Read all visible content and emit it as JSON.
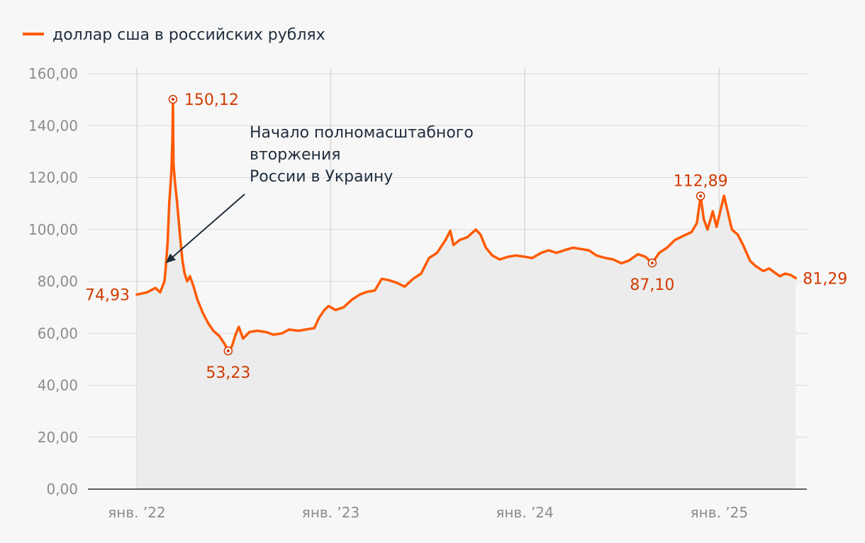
{
  "chart_data": {
    "type": "area",
    "title": "",
    "xlabel": "",
    "ylabel": "",
    "legend": {
      "position": "top-left",
      "entries": [
        "доллар сша в российских рублях"
      ]
    },
    "series": [
      {
        "name": "доллар сша в российских рублях",
        "color": "#ff5a00",
        "fill": "#ececec",
        "x": [
          "2022-01-01",
          "2022-01-20",
          "2022-02-05",
          "2022-02-14",
          "2022-02-22",
          "2022-02-24",
          "2022-02-28",
          "2022-03-03",
          "2022-03-07",
          "2022-03-09",
          "2022-03-10",
          "2022-03-11",
          "2022-03-14",
          "2022-03-17",
          "2022-03-21",
          "2022-03-24",
          "2022-03-28",
          "2022-04-01",
          "2022-04-06",
          "2022-04-11",
          "2022-04-18",
          "2022-04-25",
          "2022-05-05",
          "2022-05-15",
          "2022-05-25",
          "2022-06-05",
          "2022-06-15",
          "2022-06-22",
          "2022-06-29",
          "2022-07-05",
          "2022-07-12",
          "2022-07-20",
          "2022-08-01",
          "2022-08-15",
          "2022-09-01",
          "2022-09-15",
          "2022-10-01",
          "2022-10-15",
          "2022-11-01",
          "2022-11-15",
          "2022-12-01",
          "2022-12-10",
          "2022-12-20",
          "2022-12-28",
          "2023-01-10",
          "2023-01-25",
          "2023-02-10",
          "2023-02-25",
          "2023-03-10",
          "2023-03-25",
          "2023-04-07",
          "2023-04-20",
          "2023-05-05",
          "2023-05-20",
          "2023-06-05",
          "2023-06-20",
          "2023-07-05",
          "2023-07-20",
          "2023-08-05",
          "2023-08-14",
          "2023-08-20",
          "2023-09-01",
          "2023-09-15",
          "2023-10-01",
          "2023-10-10",
          "2023-10-20",
          "2023-11-01",
          "2023-11-15",
          "2023-12-01",
          "2023-12-15",
          "2024-01-01",
          "2024-01-15",
          "2024-02-01",
          "2024-02-15",
          "2024-03-01",
          "2024-03-15",
          "2024-04-01",
          "2024-04-15",
          "2024-05-01",
          "2024-05-15",
          "2024-06-01",
          "2024-06-15",
          "2024-07-01",
          "2024-07-15",
          "2024-08-01",
          "2024-08-15",
          "2024-08-28",
          "2024-09-10",
          "2024-09-25",
          "2024-10-10",
          "2024-10-25",
          "2024-11-10",
          "2024-11-20",
          "2024-11-27",
          "2024-12-03",
          "2024-12-10",
          "2024-12-20",
          "2024-12-27",
          "2025-01-10",
          "2025-01-25",
          "2025-02-05",
          "2025-02-15",
          "2025-02-28",
          "2025-03-10",
          "2025-03-25",
          "2025-04-05",
          "2025-04-15",
          "2025-04-25",
          "2025-05-05",
          "2025-05-15",
          "2025-05-25"
        ],
        "values": [
          74.93,
          75.8,
          77.5,
          75.8,
          80.0,
          84.0,
          95.0,
          110.0,
          122.0,
          135.0,
          150.12,
          125.0,
          118.0,
          112.0,
          103.0,
          96.0,
          88.0,
          83.0,
          80.0,
          82.0,
          78.0,
          73.0,
          68.0,
          64.0,
          61.0,
          59.0,
          56.0,
          53.23,
          55.0,
          59.0,
          62.5,
          58.0,
          60.5,
          61.0,
          60.5,
          59.5,
          60.0,
          61.5,
          61.0,
          61.5,
          62.0,
          66.0,
          69.0,
          70.5,
          69.0,
          70.0,
          73.0,
          75.0,
          76.0,
          76.5,
          81.0,
          80.5,
          79.5,
          78.0,
          81.0,
          83.0,
          89.0,
          91.0,
          96.0,
          99.5,
          94.0,
          96.0,
          97.0,
          100.0,
          98.0,
          93.0,
          90.0,
          88.5,
          89.5,
          90.0,
          89.5,
          89.0,
          91.0,
          92.0,
          91.0,
          92.0,
          93.0,
          92.5,
          92.0,
          90.0,
          89.0,
          88.5,
          87.0,
          88.0,
          90.5,
          89.5,
          87.1,
          91.0,
          93.0,
          96.0,
          97.5,
          99.0,
          102.5,
          112.89,
          104.0,
          100.0,
          107.0,
          101.0,
          113.0,
          100.0,
          98.0,
          94.0,
          88.0,
          86.0,
          84.0,
          85.0,
          83.5,
          82.0,
          83.0,
          82.5,
          81.29
        ]
      }
    ],
    "x_ticks": [
      {
        "date": "2022-01-01",
        "label": "янв. ’22"
      },
      {
        "date": "2023-01-01",
        "label": "янв. ’23"
      },
      {
        "date": "2024-01-01",
        "label": "янв. ’24"
      },
      {
        "date": "2025-01-01",
        "label": "янв. ’25"
      }
    ],
    "x_range": [
      "2021-10-01",
      "2025-06-15"
    ],
    "y_ticks": [
      "0,00",
      "20,00",
      "40,00",
      "60,00",
      "80,00",
      "100,00",
      "120,00",
      "140,00",
      "160,00"
    ],
    "ylim": [
      0,
      160
    ],
    "grid": true,
    "data_labels": [
      {
        "date": "2022-01-01",
        "value": 74.93,
        "text": "74,93",
        "side": "left",
        "marker": false
      },
      {
        "date": "2022-03-10",
        "value": 150.12,
        "text": "150,12",
        "side": "right",
        "marker": true
      },
      {
        "date": "2022-06-22",
        "value": 53.23,
        "text": "53,23",
        "side": "below",
        "marker": true
      },
      {
        "date": "2024-08-28",
        "value": 87.1,
        "text": "87,10",
        "side": "below",
        "marker": true
      },
      {
        "date": "2024-11-27",
        "value": 112.89,
        "text": "112,89",
        "side": "above",
        "marker": true
      },
      {
        "date": "2025-05-25",
        "value": 81.29,
        "text": "81,29",
        "side": "right",
        "marker": false
      }
    ],
    "annotation": {
      "lines": [
        "Начало полномасштабного",
        "вторжения",
        "России в Украину"
      ],
      "arrow_to": {
        "date": "2022-02-24",
        "value": 87
      }
    }
  }
}
